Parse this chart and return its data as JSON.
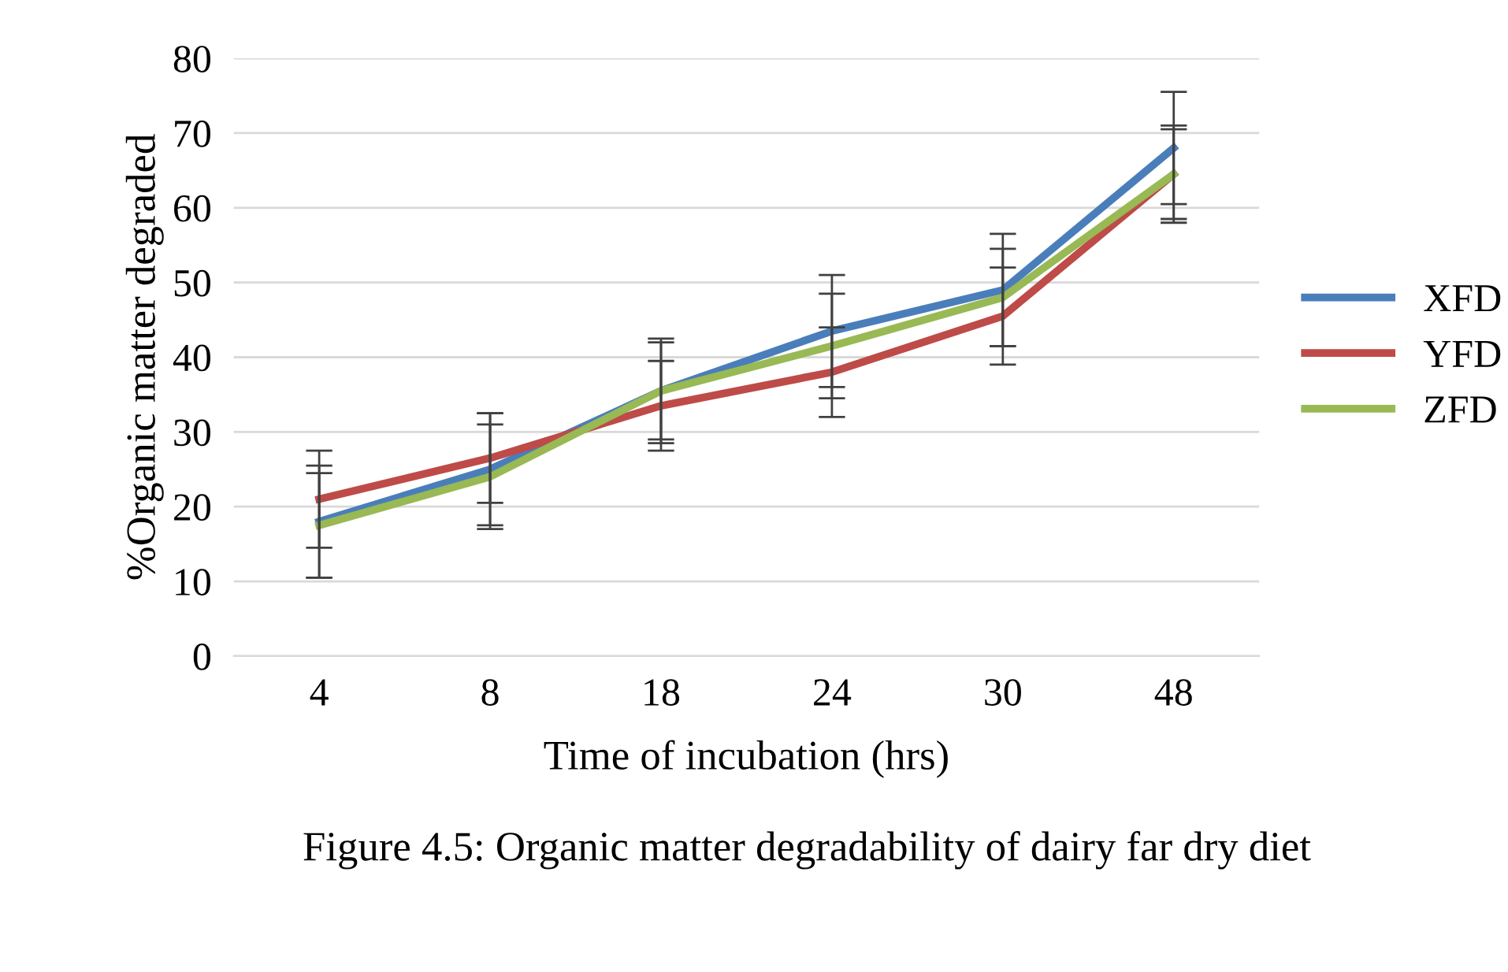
{
  "chart_data": {
    "type": "line",
    "xlabel": "Time of incubation (hrs)",
    "ylabel": "%Organic matter degraded",
    "categories": [
      "4",
      "8",
      "18",
      "24",
      "30",
      "48"
    ],
    "series": [
      {
        "name": "XFD",
        "color": "#4a7ebb",
        "values": [
          18,
          25,
          35.5,
          43.5,
          49,
          68
        ],
        "errors": [
          7.5,
          7.5,
          7,
          7.5,
          7.5,
          7.5
        ]
      },
      {
        "name": "YFD",
        "color": "#be4b48",
        "values": [
          21,
          26.5,
          33.5,
          38,
          45.5,
          64.5
        ],
        "errors": [
          6.5,
          6,
          6,
          6,
          6.5,
          6.5
        ]
      },
      {
        "name": "ZFD",
        "color": "#98b954",
        "values": [
          17.5,
          24,
          35.5,
          41.5,
          48,
          64.5
        ],
        "errors": [
          7,
          7,
          6.5,
          7,
          6.5,
          6
        ]
      }
    ],
    "ylim": [
      0,
      80
    ],
    "yticks": [
      0,
      10,
      20,
      30,
      40,
      50,
      60,
      70,
      80
    ],
    "grid": "y",
    "legend": "right",
    "marker": "none",
    "line_style": "solid",
    "annotations": [
      "Figure 4.5: Organic matter degradability of dairy far dry diet"
    ]
  }
}
